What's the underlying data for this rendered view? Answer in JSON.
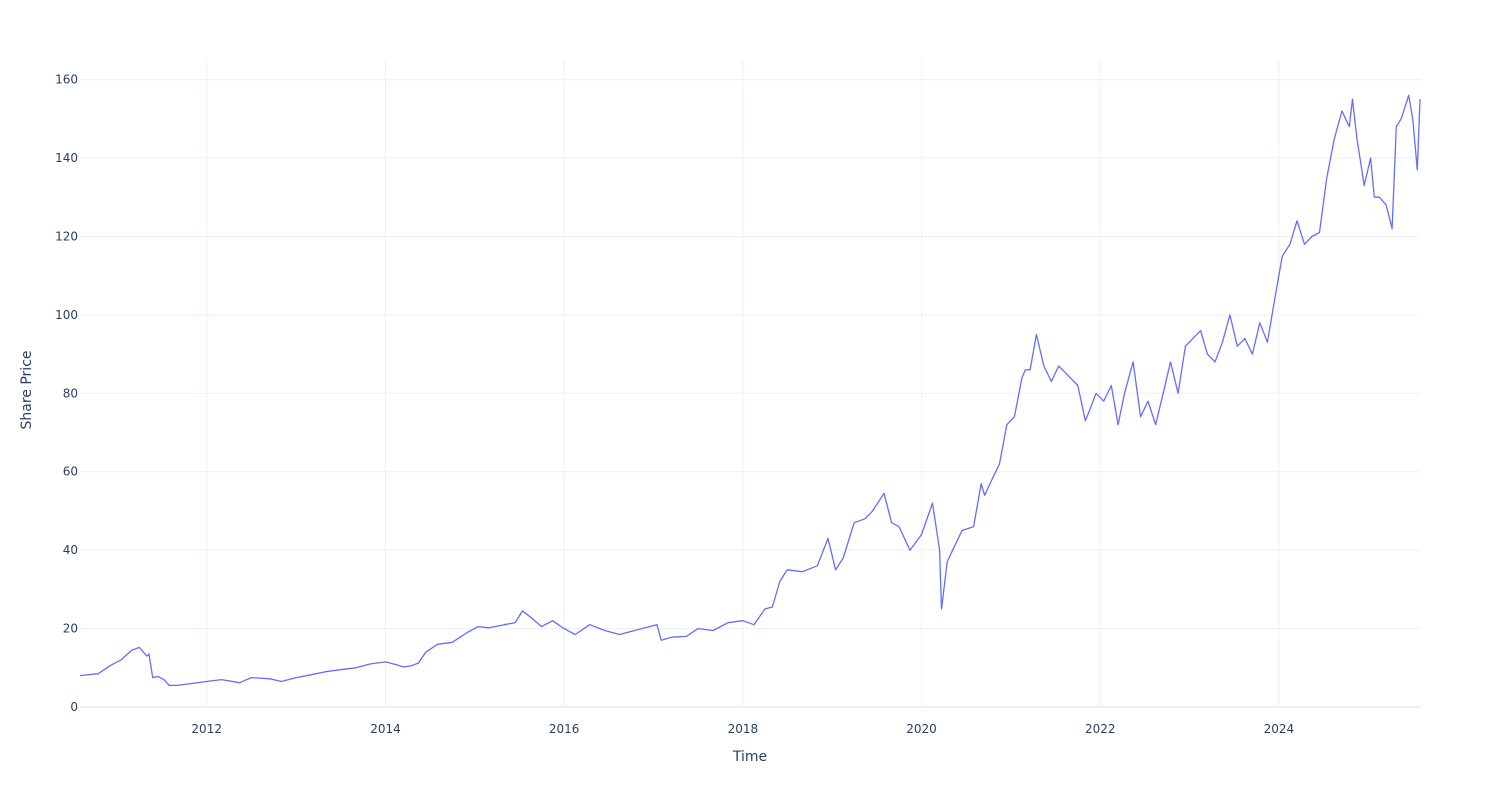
{
  "chart_data": {
    "type": "line",
    "title": "",
    "xlabel": "Time",
    "ylabel": "Share Price",
    "xlim": [
      "2010-08-01",
      "2025-07-31"
    ],
    "ylim": [
      0,
      165
    ],
    "grid": true,
    "line_color": "#636efa",
    "grid_color": "#ebf0f8",
    "text_color": "#2a3f5f",
    "x_ticks": [
      {
        "label": "2012",
        "x": "2012-01-01"
      },
      {
        "label": "2014",
        "x": "2014-01-01"
      },
      {
        "label": "2016",
        "x": "2016-01-01"
      },
      {
        "label": "2018",
        "x": "2018-01-01"
      },
      {
        "label": "2020",
        "x": "2020-01-01"
      },
      {
        "label": "2022",
        "x": "2022-01-01"
      },
      {
        "label": "2024",
        "x": "2024-01-01"
      }
    ],
    "y_ticks": [
      0,
      20,
      40,
      60,
      80,
      100,
      120,
      140,
      160
    ],
    "series": [
      {
        "x": [
          "2010-08-01",
          "2010-10-15",
          "2010-12-01",
          "2011-01-15",
          "2011-03-01",
          "2011-04-01",
          "2011-05-01",
          "2011-05-10",
          "2011-05-25",
          "2011-06-15",
          "2011-07-10",
          "2011-08-01",
          "2011-09-01",
          "2011-11-01",
          "2012-01-01",
          "2012-03-01",
          "2012-05-15",
          "2012-07-01",
          "2012-09-15",
          "2012-11-01",
          "2013-01-01",
          "2013-03-01",
          "2013-05-01",
          "2013-07-01",
          "2013-09-01",
          "2013-11-01",
          "2014-01-01",
          "2014-02-15",
          "2014-03-15",
          "2014-04-15",
          "2014-05-15",
          "2014-06-15",
          "2014-08-01",
          "2014-10-01",
          "2014-12-01",
          "2015-01-15",
          "2015-03-01",
          "2015-05-01",
          "2015-06-15",
          "2015-07-15",
          "2015-08-15",
          "2015-10-01",
          "2015-11-15",
          "2016-01-01",
          "2016-02-15",
          "2016-04-15",
          "2016-06-15",
          "2016-08-15",
          "2016-10-15",
          "2016-12-15",
          "2017-01-15",
          "2017-02-01",
          "2017-03-15",
          "2017-05-15",
          "2017-07-01",
          "2017-09-01",
          "2017-11-01",
          "2018-01-01",
          "2018-02-15",
          "2018-04-01",
          "2018-05-01",
          "2018-06-01",
          "2018-07-01",
          "2018-09-01",
          "2018-11-01",
          "2018-12-15",
          "2019-01-15",
          "2019-02-15",
          "2019-04-01",
          "2019-05-15",
          "2019-06-15",
          "2019-08-01",
          "2019-09-01",
          "2019-10-01",
          "2019-11-15",
          "2020-01-01",
          "2020-02-15",
          "2020-03-15",
          "2020-03-23",
          "2020-04-15",
          "2020-05-15",
          "2020-06-15",
          "2020-08-01",
          "2020-09-01",
          "2020-09-15",
          "2020-10-15",
          "2020-11-15",
          "2020-12-15",
          "2021-01-15",
          "2021-02-15",
          "2021-03-01",
          "2021-03-20",
          "2021-04-15",
          "2021-05-15",
          "2021-06-15",
          "2021-07-15",
          "2021-08-15",
          "2021-10-01",
          "2021-11-01",
          "2021-12-15",
          "2022-01-15",
          "2022-02-15",
          "2022-03-15",
          "2022-04-10",
          "2022-05-15",
          "2022-06-15",
          "2022-07-15",
          "2022-08-15",
          "2022-09-15",
          "2022-10-15",
          "2022-11-15",
          "2022-12-15",
          "2023-01-15",
          "2023-02-15",
          "2023-03-15",
          "2023-04-15",
          "2023-05-15",
          "2023-06-15",
          "2023-07-15",
          "2023-08-15",
          "2023-09-15",
          "2023-10-15",
          "2023-11-15",
          "2023-12-15",
          "2024-01-15",
          "2024-02-15",
          "2024-03-15",
          "2024-04-15",
          "2024-05-15",
          "2024-06-15",
          "2024-07-15",
          "2024-08-15",
          "2024-09-15",
          "2024-10-15",
          "2024-10-28",
          "2024-11-15",
          "2024-12-15",
          "2025-01-10",
          "2025-01-25",
          "2025-02-15",
          "2025-03-15",
          "2025-04-08",
          "2025-04-25",
          "2025-05-15",
          "2025-06-15",
          "2025-07-01",
          "2025-07-20",
          "2025-07-31"
        ],
        "y": [
          8.0,
          8.5,
          10.5,
          12.0,
          14.5,
          15.2,
          13.0,
          13.5,
          7.5,
          7.8,
          7.0,
          5.5,
          5.5,
          6.0,
          6.5,
          7.0,
          6.2,
          7.5,
          7.2,
          6.5,
          7.5,
          8.2,
          9.0,
          9.5,
          10.0,
          11.0,
          11.5,
          10.8,
          10.2,
          10.5,
          11.2,
          14.0,
          16.0,
          16.5,
          19.0,
          20.5,
          20.2,
          21.0,
          21.5,
          24.5,
          23.0,
          20.5,
          22.0,
          20.0,
          18.5,
          21.0,
          19.5,
          18.5,
          19.5,
          20.5,
          21.0,
          17.0,
          17.8,
          18.0,
          20.0,
          19.5,
          21.5,
          22.0,
          21.0,
          25.0,
          25.5,
          32.0,
          35.0,
          34.5,
          36.0,
          43.0,
          35.0,
          38.0,
          47.0,
          48.0,
          50.0,
          54.5,
          47.0,
          46.0,
          40.0,
          44.0,
          52.0,
          40.0,
          25.0,
          37.0,
          41.0,
          45.0,
          46.0,
          57.0,
          54.0,
          58.0,
          62.0,
          72.0,
          74.0,
          84.0,
          86.0,
          86.0,
          95.0,
          87.0,
          83.0,
          87.0,
          85.0,
          82.0,
          73.0,
          80.0,
          78.0,
          82.0,
          72.0,
          80.0,
          88.0,
          74.0,
          78.0,
          72.0,
          80.0,
          88.0,
          80.0,
          92.0,
          94.0,
          96.0,
          90.0,
          88.0,
          93.0,
          100.0,
          92.0,
          94.0,
          90.0,
          98.0,
          93.0,
          104.0,
          115.0,
          118.0,
          124.0,
          118.0,
          120.0,
          121.0,
          135.0,
          145.0,
          152.0,
          148.0,
          155.0,
          145.0,
          133.0,
          140.0,
          130.0,
          130.0,
          128.0,
          122.0,
          148.0,
          150.0,
          156.0,
          150.0,
          137.0,
          155.0
        ]
      }
    ]
  }
}
